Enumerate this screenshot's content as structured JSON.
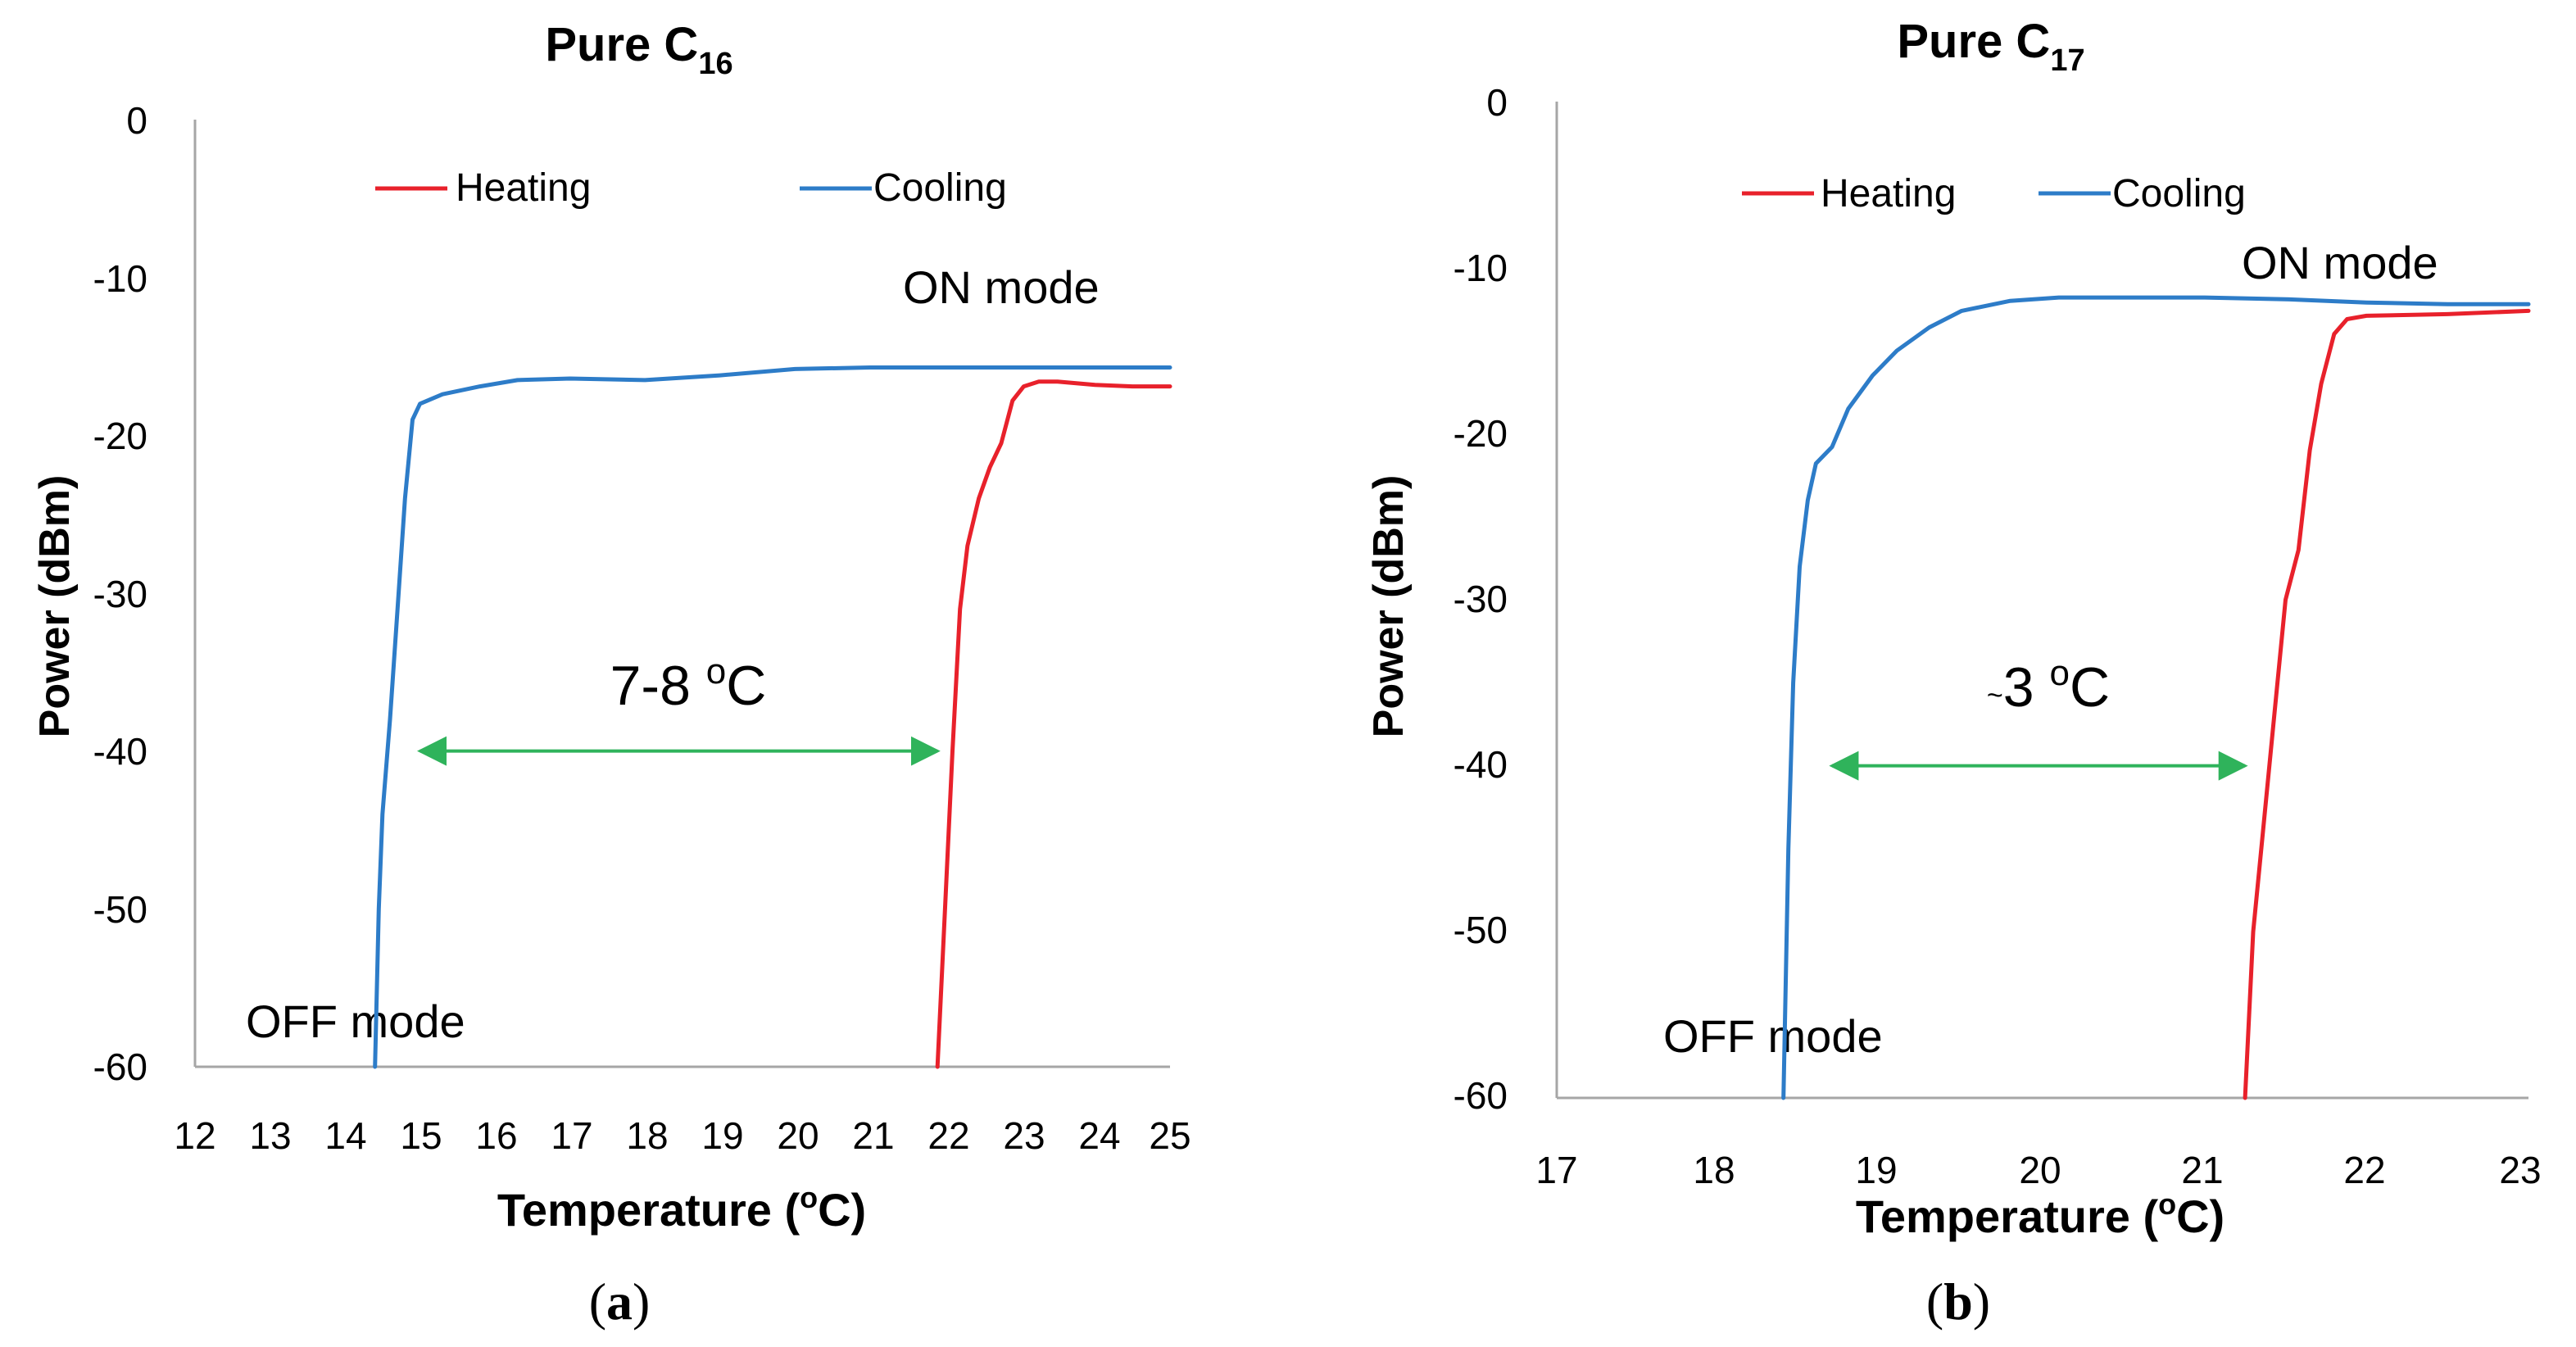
{
  "chart_data": [
    {
      "type": "line",
      "title": "Pure C",
      "title_subscript": "16",
      "panel_label": "a",
      "xlabel": "Temperature (",
      "xlabel_superscript": "o",
      "xlabel_suffix": "C)",
      "ylabel": "Power (dBm)",
      "xlim": [
        12,
        25
      ],
      "ylim": [
        -60,
        0
      ],
      "x_ticks": [
        "12",
        "13",
        "14",
        "15",
        "16",
        "17",
        "18",
        "19",
        "20",
        "21",
        "22",
        "23",
        "24",
        "25"
      ],
      "y_ticks": [
        "0",
        "-10",
        "-20",
        "-30",
        "-40",
        "-50",
        "-60"
      ],
      "legend": [
        "Heating",
        "Cooling"
      ],
      "legend_position": "top",
      "series": [
        {
          "name": "Heating",
          "color": "#e8212b",
          "x": [
            21.9,
            22.0,
            22.1,
            22.2,
            22.3,
            22.45,
            22.6,
            22.75,
            22.9,
            23.05,
            23.25,
            23.5,
            24.0,
            24.5,
            25.0
          ],
          "y": [
            -60,
            -50,
            -40,
            -31,
            -27,
            -24,
            -22,
            -20.5,
            -17.8,
            -16.9,
            -16.6,
            -16.6,
            -16.8,
            -16.9,
            -16.9
          ]
        },
        {
          "name": "Cooling",
          "color": "#2d7cc8",
          "x": [
            14.4,
            14.45,
            14.5,
            14.6,
            14.7,
            14.8,
            14.9,
            15.0,
            15.3,
            15.8,
            16.3,
            17.0,
            18.0,
            19.0,
            20.0,
            21.0,
            22.0,
            23.0,
            24.0,
            25.0
          ],
          "y": [
            -60,
            -50,
            -44,
            -38,
            -31,
            -24,
            -19,
            -18,
            -17.4,
            -16.9,
            -16.5,
            -16.4,
            -16.5,
            -16.2,
            -15.8,
            -15.7,
            -15.7,
            -15.7,
            -15.7,
            -15.7
          ]
        }
      ],
      "annotations": {
        "on_mode": "ON mode",
        "off_mode": "OFF mode",
        "hysteresis": "7-8 ",
        "hysteresis_superscript": "o",
        "hysteresis_unit": "C",
        "arrow_from_x": 15.0,
        "arrow_to_x": 21.9,
        "arrow_y": -40,
        "arrow_color": "#2fb35b"
      }
    },
    {
      "type": "line",
      "title": "Pure C",
      "title_subscript": "17",
      "panel_label": "b",
      "xlabel": "Temperature (",
      "xlabel_superscript": "o",
      "xlabel_suffix": "C)",
      "ylabel": "Power (dBm)",
      "xlim": [
        17,
        23
      ],
      "ylim": [
        -60,
        0
      ],
      "x_ticks": [
        "17",
        "18",
        "19",
        "20",
        "21",
        "22",
        "23"
      ],
      "y_ticks": [
        "0",
        "-10",
        "-20",
        "-30",
        "-40",
        "-50",
        "-60"
      ],
      "legend": [
        "Heating",
        "Cooling"
      ],
      "legend_position": "top",
      "series": [
        {
          "name": "Heating",
          "color": "#e8212b",
          "x": [
            21.25,
            21.3,
            21.35,
            21.42,
            21.5,
            21.58,
            21.65,
            21.72,
            21.8,
            21.88,
            22.0,
            22.5,
            23.0
          ],
          "y": [
            -60,
            -50,
            -45,
            -38,
            -30,
            -27,
            -21,
            -17,
            -14,
            -13.1,
            -12.9,
            -12.8,
            -12.6
          ]
        },
        {
          "name": "Cooling",
          "color": "#2d7cc8",
          "x": [
            18.4,
            18.43,
            18.46,
            18.5,
            18.55,
            18.6,
            18.7,
            18.8,
            18.95,
            19.1,
            19.3,
            19.5,
            19.8,
            20.1,
            20.5,
            21.0,
            21.5,
            22.0,
            22.5,
            23.0
          ],
          "y": [
            -60,
            -45,
            -35,
            -28,
            -24,
            -21.8,
            -20.8,
            -18.5,
            -16.5,
            -15,
            -13.6,
            -12.6,
            -12,
            -11.8,
            -11.8,
            -11.8,
            -11.9,
            -12.1,
            -12.2,
            -12.2
          ]
        }
      ],
      "annotations": {
        "on_mode": "ON mode",
        "off_mode": "OFF mode",
        "hysteresis_prefix": "~",
        "hysteresis": "3 ",
        "hysteresis_superscript": "o",
        "hysteresis_unit": "C",
        "arrow_from_x": 18.7,
        "arrow_to_x": 21.25,
        "arrow_y": -40,
        "arrow_color": "#2fb35b"
      }
    }
  ]
}
